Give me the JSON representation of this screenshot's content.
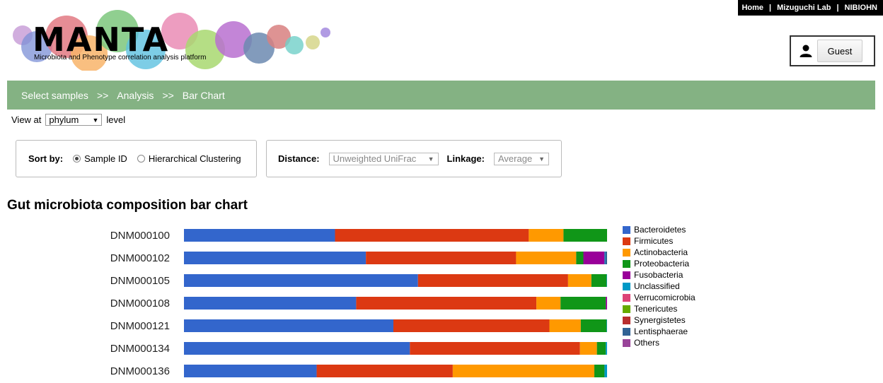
{
  "topnav": {
    "home": "Home",
    "lab": "Mizuguchi Lab",
    "org": "NIBIOHN",
    "sep": "|"
  },
  "logo": {
    "title": "MANTA",
    "subtitle": "Microbiota and Phenotype correlation analysis platform"
  },
  "user": {
    "label": "Guest"
  },
  "breadcrumb": {
    "items": [
      "Select samples",
      "Analysis",
      "Bar Chart"
    ],
    "sep": ">>"
  },
  "view": {
    "prefix": "View at",
    "level": "phylum",
    "suffix": "level"
  },
  "sort": {
    "label": "Sort by:",
    "options": [
      "Sample ID",
      "Hierarchical Clustering"
    ],
    "selected": "Sample ID"
  },
  "distance": {
    "label": "Distance:",
    "value": "Unweighted UniFrac"
  },
  "linkage": {
    "label": "Linkage:",
    "value": "Average"
  },
  "chart_title": "Gut microbiota composition bar chart",
  "chart_data": {
    "type": "bar",
    "orientation": "horizontal",
    "stacked": true,
    "normalized": true,
    "title": "Gut microbiota composition bar chart",
    "legend_position": "right",
    "categories": [
      "DNM000100",
      "DNM000102",
      "DNM000105",
      "DNM000108",
      "DNM000121",
      "DNM000134",
      "DNM000136"
    ],
    "series": [
      {
        "name": "Bacteroidetes",
        "color": "#3366cc",
        "values": [
          0.357,
          0.43,
          0.552,
          0.407,
          0.494,
          0.534,
          0.313
        ]
      },
      {
        "name": "Firmicutes",
        "color": "#dc3912",
        "values": [
          0.458,
          0.355,
          0.354,
          0.426,
          0.368,
          0.402,
          0.321
        ]
      },
      {
        "name": "Actinobacteria",
        "color": "#ff9900",
        "values": [
          0.082,
          0.142,
          0.055,
          0.057,
          0.074,
          0.04,
          0.334
        ]
      },
      {
        "name": "Proteobacteria",
        "color": "#109618",
        "values": [
          0.103,
          0.017,
          0.036,
          0.107,
          0.061,
          0.021,
          0.024
        ]
      },
      {
        "name": "Fusobacteria",
        "color": "#990099",
        "values": [
          0,
          0.05,
          0,
          0.003,
          0,
          0,
          0
        ]
      },
      {
        "name": "Unclassified",
        "color": "#0099c6",
        "values": [
          0,
          0.002,
          0.001,
          0,
          0.001,
          0.003,
          0.006
        ]
      },
      {
        "name": "Verrucomicrobia",
        "color": "#dd4477",
        "values": [
          0,
          0,
          0,
          0,
          0,
          0,
          0
        ]
      },
      {
        "name": "Tenericutes",
        "color": "#66aa00",
        "values": [
          0,
          0,
          0,
          0,
          0,
          0,
          0
        ]
      },
      {
        "name": "Synergistetes",
        "color": "#b82e2e",
        "values": [
          0,
          0,
          0,
          0,
          0,
          0,
          0
        ]
      },
      {
        "name": "Lentisphaerae",
        "color": "#316395",
        "values": [
          0,
          0.004,
          0,
          0,
          0,
          0,
          0
        ]
      },
      {
        "name": "Others",
        "color": "#994499",
        "values": [
          0,
          0,
          0,
          0,
          0,
          0,
          0
        ]
      }
    ]
  }
}
